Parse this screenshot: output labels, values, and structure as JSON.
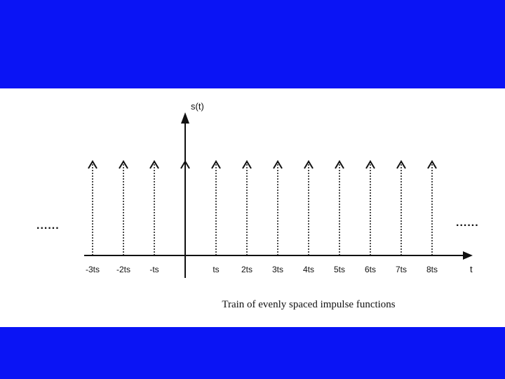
{
  "colors": {
    "band": "#0a14f5",
    "ink": "#111111",
    "background": "#ffffff"
  },
  "diagram": {
    "y_axis_label": "s(t)",
    "x_axis_label": "t",
    "caption": "Train of evenly spaced impulse functions",
    "left_ellipsis": "......",
    "right_ellipsis": "......",
    "impulses": [
      {
        "k": -3,
        "label": "-3ts"
      },
      {
        "k": -2,
        "label": "-2ts"
      },
      {
        "k": -1,
        "label": "-ts"
      },
      {
        "k": 0,
        "label": ""
      },
      {
        "k": 1,
        "label": "ts"
      },
      {
        "k": 2,
        "label": "2ts"
      },
      {
        "k": 3,
        "label": "3ts"
      },
      {
        "k": 4,
        "label": "4ts"
      },
      {
        "k": 5,
        "label": "5ts"
      },
      {
        "k": 6,
        "label": "6ts"
      },
      {
        "k": 7,
        "label": "7ts"
      },
      {
        "k": 8,
        "label": "8ts"
      }
    ]
  }
}
